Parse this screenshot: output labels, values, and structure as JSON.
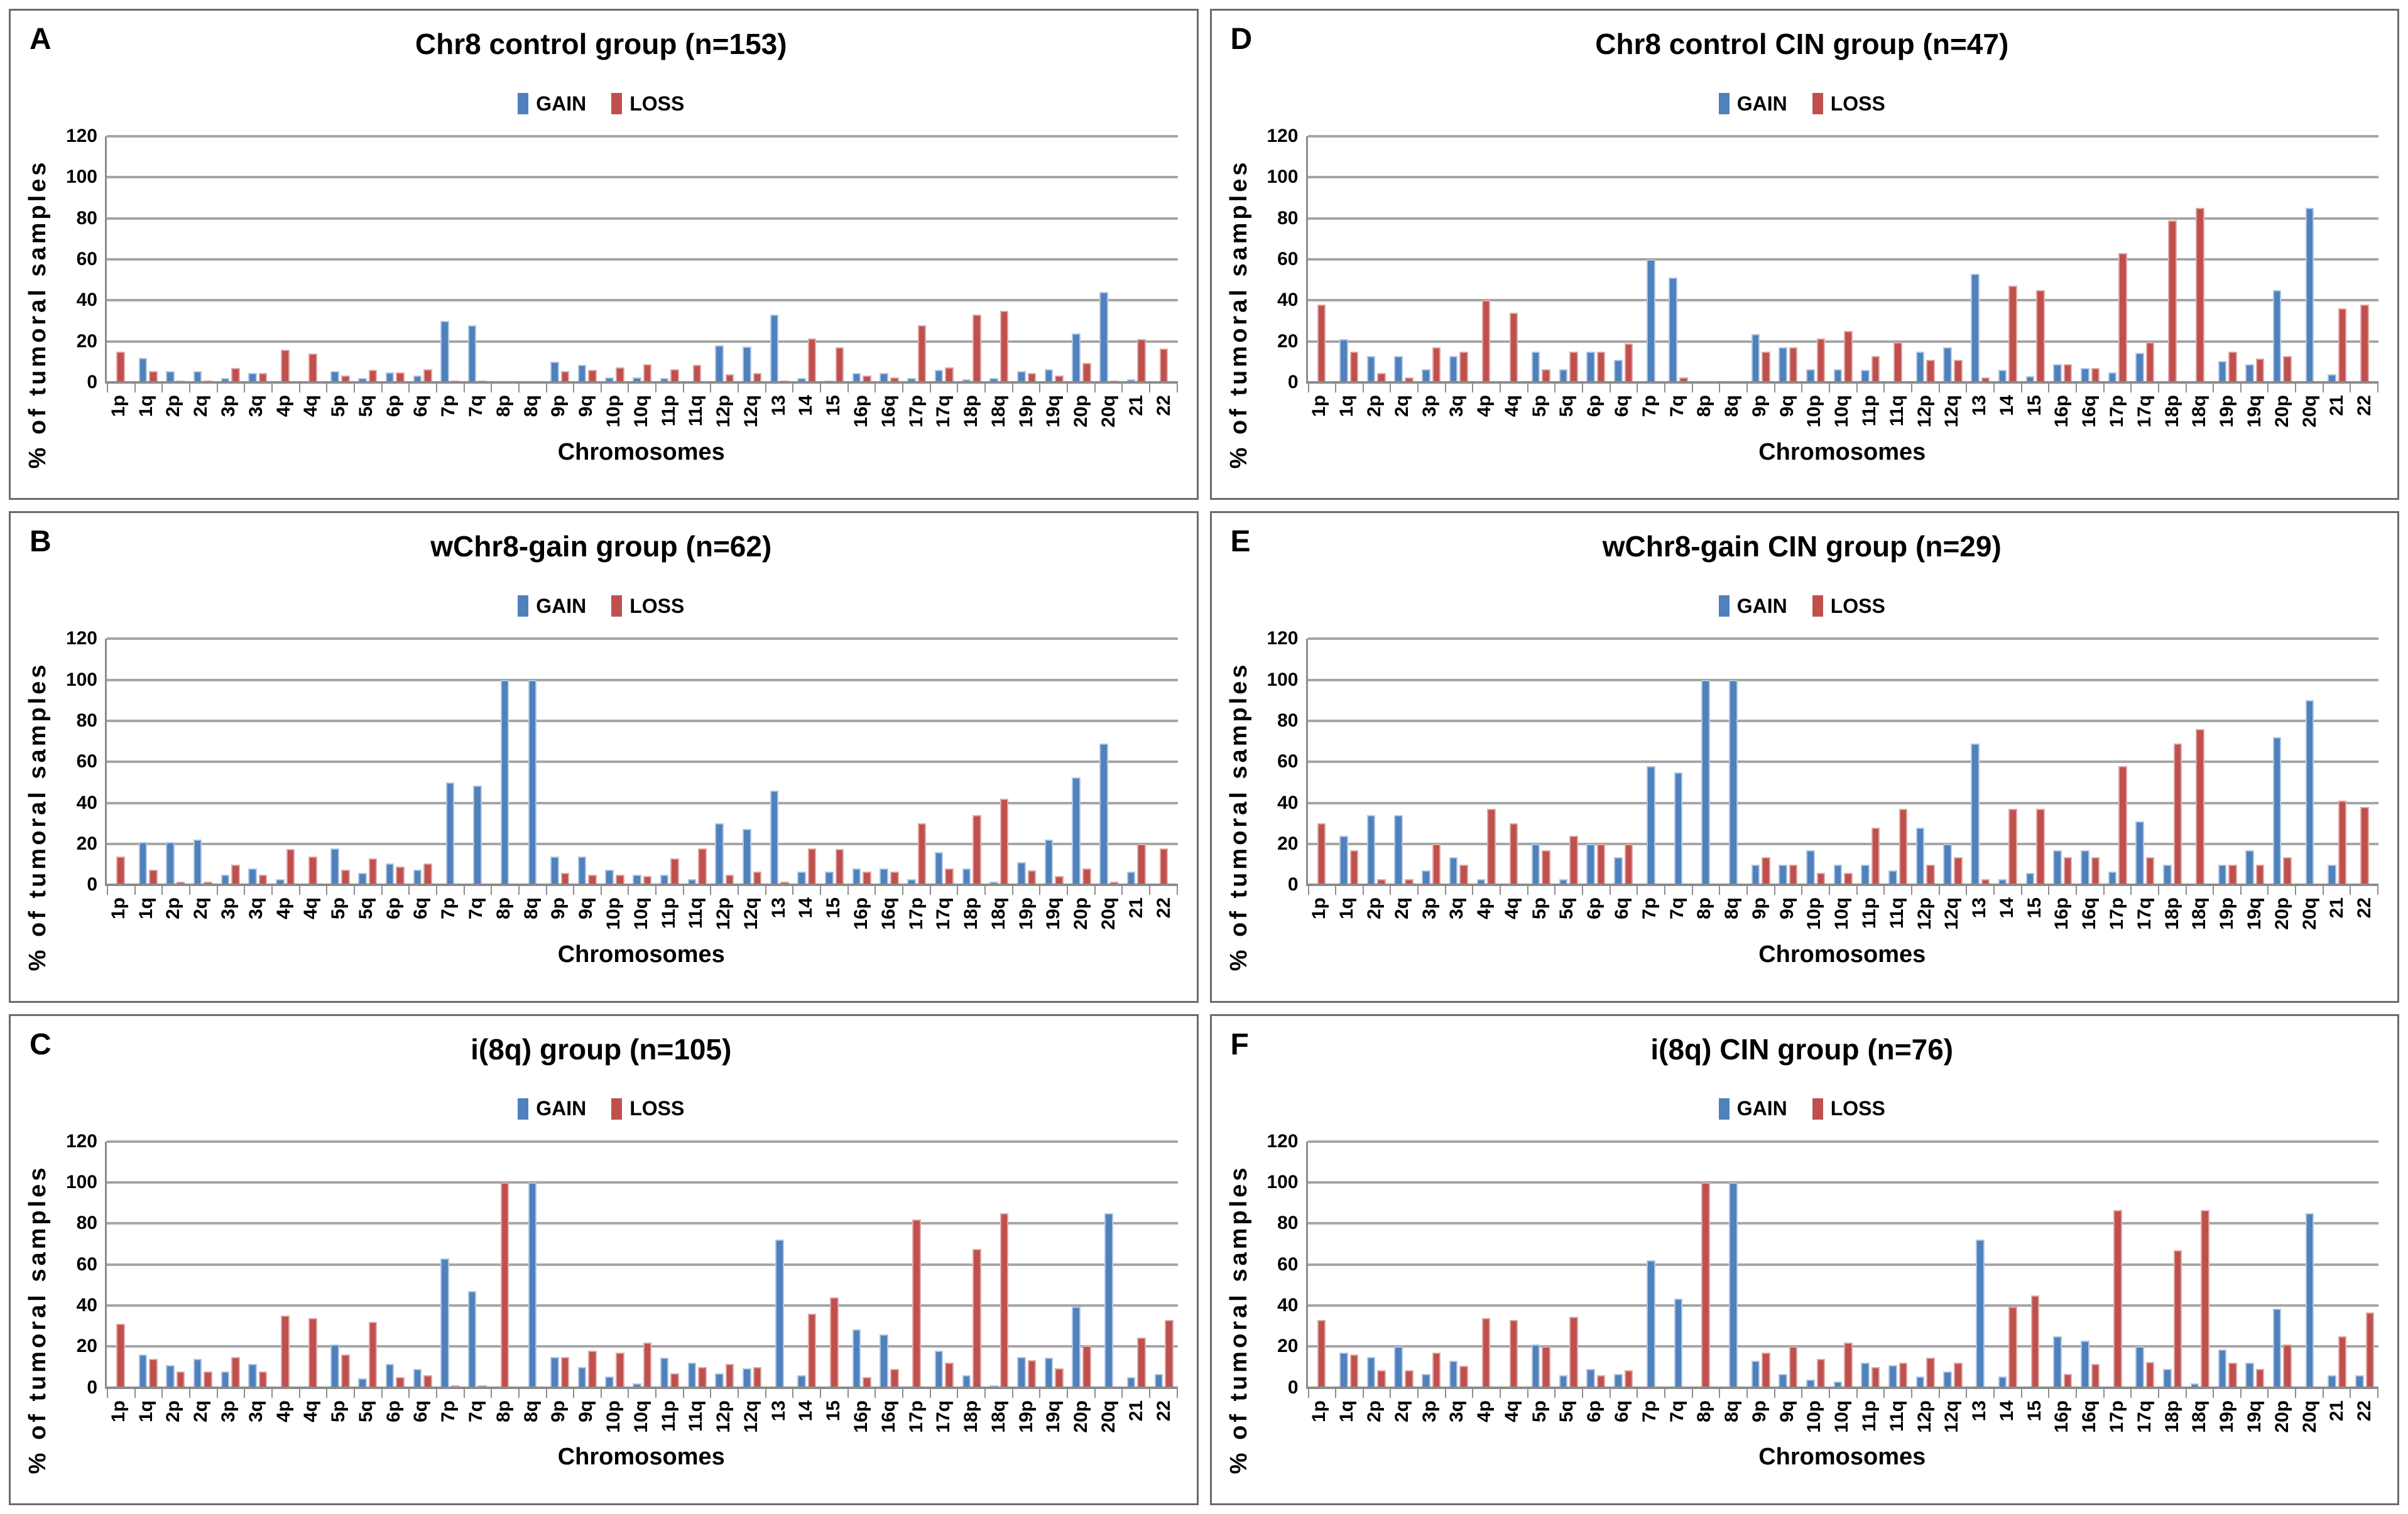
{
  "legend": {
    "gain_label": "GAIN",
    "loss_label": "LOSS"
  },
  "axis": {
    "ylabel": "% of tumoral samples",
    "xlabel": "Chromosomes",
    "yticks": [
      0,
      20,
      40,
      60,
      80,
      100,
      120
    ],
    "ylim": [
      0,
      120
    ]
  },
  "colors": {
    "gain": "#4F81BD",
    "gain_edge": "#AEC6E2",
    "loss": "#C0504D",
    "loss_edge": "#DFA7A5",
    "gridline": "#A6A6A6",
    "axis_line": "#8C8C8C",
    "panel_border": "#6B6B6B"
  },
  "chart_data": [
    {
      "letter": "A",
      "title": "Chr8 control group (n=153)",
      "type": "bar",
      "grid": true,
      "legend_position": "top",
      "ylim": [
        0,
        120
      ],
      "yticks": [
        0,
        20,
        40,
        60,
        80,
        100,
        120
      ],
      "categories": [
        "1p",
        "1q",
        "2p",
        "2q",
        "3p",
        "3q",
        "4p",
        "4q",
        "5p",
        "5q",
        "6p",
        "6q",
        "7p",
        "7q",
        "8p",
        "8q",
        "9p",
        "9q",
        "10p",
        "10q",
        "11p",
        "11q",
        "12p",
        "12q",
        "13",
        "14",
        "15",
        "16p",
        "16q",
        "17p",
        "17q",
        "18p",
        "18q",
        "19p",
        "19q",
        "20p",
        "20q",
        "21",
        "22"
      ],
      "series": [
        {
          "name": "GAIN",
          "color": "#4F81BD",
          "values": [
            0,
            12,
            5.5,
            5.5,
            2,
            4.5,
            0,
            0,
            5.5,
            2,
            5,
            3.5,
            30,
            28,
            0,
            0,
            10,
            8.5,
            2.5,
            2.5,
            2,
            0,
            18,
            17.5,
            33,
            2,
            1,
            4.5,
            4.5,
            2,
            6,
            1.5,
            2,
            5.5,
            6.5,
            24,
            44,
            1.5,
            0
          ]
        },
        {
          "name": "LOSS",
          "color": "#C0504D",
          "values": [
            15,
            5.5,
            1,
            1,
            7,
            4.5,
            16,
            14,
            3.5,
            6,
            5,
            6.5,
            1,
            1,
            0,
            0,
            5.5,
            6,
            7.5,
            9,
            6.5,
            8.5,
            4,
            4.5,
            1,
            21.5,
            17,
            3.5,
            2.5,
            28,
            7.5,
            33,
            35,
            4.5,
            3.5,
            9.5,
            1,
            21,
            16.5
          ]
        }
      ]
    },
    {
      "letter": "B",
      "title": "wChr8-gain group (n=62)",
      "type": "bar",
      "grid": true,
      "legend_position": "top",
      "ylim": [
        0,
        120
      ],
      "yticks": [
        0,
        20,
        40,
        60,
        80,
        100,
        120
      ],
      "categories": [
        "1p",
        "1q",
        "2p",
        "2q",
        "3p",
        "3q",
        "4p",
        "4q",
        "5p",
        "5q",
        "6p",
        "6q",
        "7p",
        "7q",
        "8p",
        "8q",
        "9p",
        "9q",
        "10p",
        "10q",
        "11p",
        "11q",
        "12p",
        "12q",
        "13",
        "14",
        "15",
        "16p",
        "16q",
        "17p",
        "17q",
        "18p",
        "18q",
        "19p",
        "19q",
        "20p",
        "20q",
        "21",
        "22"
      ],
      "series": [
        {
          "name": "GAIN",
          "color": "#4F81BD",
          "values": [
            0,
            21,
            21,
            22,
            5,
            8,
            3,
            0,
            18,
            6,
            10.5,
            7.5,
            50,
            48.5,
            100,
            100,
            14,
            14,
            7.5,
            5,
            5,
            3,
            30,
            27.5,
            46,
            6.5,
            6.5,
            8,
            8,
            3,
            16,
            8,
            1.5,
            11,
            22,
            52.5,
            69,
            6.5,
            0
          ]
        },
        {
          "name": "LOSS",
          "color": "#C0504D",
          "values": [
            14,
            7.5,
            1.5,
            1.5,
            10,
            5,
            17.5,
            14,
            7.5,
            13,
            9,
            10.5,
            0,
            0,
            0,
            0,
            6,
            5,
            5,
            4.5,
            13,
            18,
            5,
            6.5,
            1.5,
            18,
            17.5,
            6.5,
            6.5,
            30,
            8,
            34,
            42,
            7,
            4.5,
            8,
            1.5,
            20,
            18
          ]
        }
      ]
    },
    {
      "letter": "C",
      "title": "i(8q) group (n=105)",
      "type": "bar",
      "grid": true,
      "legend_position": "top",
      "ylim": [
        0,
        120
      ],
      "yticks": [
        0,
        20,
        40,
        60,
        80,
        100,
        120
      ],
      "categories": [
        "1p",
        "1q",
        "2p",
        "2q",
        "3p",
        "3q",
        "4p",
        "4q",
        "5p",
        "5q",
        "6p",
        "6q",
        "7p",
        "7q",
        "8p",
        "8q",
        "9p",
        "9q",
        "10p",
        "10q",
        "11p",
        "11q",
        "12p",
        "12q",
        "13",
        "14",
        "15",
        "16p",
        "16q",
        "17p",
        "17q",
        "18p",
        "18q",
        "19p",
        "19q",
        "20p",
        "20q",
        "21",
        "22"
      ],
      "series": [
        {
          "name": "GAIN",
          "color": "#4F81BD",
          "values": [
            0,
            16,
            11,
            14,
            8,
            11.5,
            0,
            0,
            21,
            4.5,
            11.5,
            9,
            63,
            47,
            0,
            100,
            15,
            10,
            5.5,
            2,
            14.5,
            12,
            7,
            9.5,
            72,
            6,
            0,
            28.5,
            26,
            0,
            18,
            6,
            1,
            15,
            14.5,
            39.5,
            85,
            5,
            6.5
          ]
        },
        {
          "name": "LOSS",
          "color": "#C0504D",
          "values": [
            31,
            14,
            8,
            8,
            15,
            8,
            35,
            34,
            16,
            32,
            5,
            6,
            1,
            1,
            100,
            0,
            15,
            18,
            17,
            22,
            7,
            10,
            11.5,
            10,
            0,
            36,
            44,
            5,
            9,
            82,
            12,
            67.5,
            85,
            13.5,
            9.5,
            20.5,
            0,
            24.5,
            33
          ]
        }
      ]
    },
    {
      "letter": "D",
      "title": "Chr8 control CIN group (n=47)",
      "type": "bar",
      "grid": true,
      "legend_position": "top",
      "ylim": [
        0,
        120
      ],
      "yticks": [
        0,
        20,
        40,
        60,
        80,
        100,
        120
      ],
      "categories": [
        "1p",
        "1q",
        "2p",
        "2q",
        "3p",
        "3q",
        "4p",
        "4q",
        "5p",
        "5q",
        "6p",
        "6q",
        "7p",
        "7q",
        "8p",
        "8q",
        "9p",
        "9q",
        "10p",
        "10q",
        "11p",
        "11q",
        "12p",
        "12q",
        "13",
        "14",
        "15",
        "16p",
        "16q",
        "17p",
        "17q",
        "18p",
        "18q",
        "19p",
        "19q",
        "20p",
        "20q",
        "21",
        "22"
      ],
      "series": [
        {
          "name": "GAIN",
          "color": "#4F81BD",
          "values": [
            0,
            21,
            13,
            13,
            6.5,
            13,
            0,
            0,
            15,
            6.5,
            15,
            11,
            60,
            51,
            0,
            0,
            23.5,
            17,
            6.5,
            6.5,
            6,
            0,
            15,
            17,
            53,
            6,
            3,
            9,
            7,
            5,
            14.5,
            0,
            0,
            10.5,
            9,
            45,
            85,
            4,
            0
          ]
        },
        {
          "name": "LOSS",
          "color": "#C0504D",
          "values": [
            38,
            15,
            4.5,
            2.5,
            17,
            15,
            40,
            34,
            6.5,
            15,
            15,
            19,
            0,
            2.5,
            0,
            0,
            15,
            17,
            21.5,
            25,
            13,
            19.5,
            11,
            11,
            2.5,
            47,
            45,
            9,
            7,
            63,
            19.5,
            79,
            85,
            15,
            11.5,
            13,
            0,
            36,
            38
          ]
        }
      ]
    },
    {
      "letter": "E",
      "title": "wChr8-gain CIN group (n=29)",
      "type": "bar",
      "grid": true,
      "legend_position": "top",
      "ylim": [
        0,
        120
      ],
      "yticks": [
        0,
        20,
        40,
        60,
        80,
        100,
        120
      ],
      "categories": [
        "1p",
        "1q",
        "2p",
        "2q",
        "3p",
        "3q",
        "4p",
        "4q",
        "5p",
        "5q",
        "6p",
        "6q",
        "7p",
        "7q",
        "8p",
        "8q",
        "9p",
        "9q",
        "10p",
        "10q",
        "11p",
        "11q",
        "12p",
        "12q",
        "13",
        "14",
        "15",
        "16p",
        "16q",
        "17p",
        "17q",
        "18p",
        "18q",
        "19p",
        "19q",
        "20p",
        "20q",
        "21",
        "22"
      ],
      "series": [
        {
          "name": "GAIN",
          "color": "#4F81BD",
          "values": [
            0,
            24,
            34,
            34,
            7,
            13.5,
            3,
            0,
            20,
            3,
            20,
            13.5,
            58,
            55,
            100,
            100,
            10,
            10,
            17,
            10,
            10,
            7,
            28,
            20,
            69,
            3,
            6,
            17,
            17,
            6.5,
            31,
            10,
            0,
            10,
            17,
            72,
            90,
            10,
            0
          ]
        },
        {
          "name": "LOSS",
          "color": "#C0504D",
          "values": [
            30,
            17,
            3,
            3,
            20,
            10,
            37,
            30,
            17,
            24,
            20,
            20,
            0,
            0,
            0,
            0,
            13.5,
            10,
            6,
            6,
            28,
            37,
            10,
            13.5,
            3,
            37,
            37,
            13.5,
            13.5,
            58,
            13.5,
            69,
            76,
            10,
            10,
            13.5,
            0,
            41,
            38
          ]
        }
      ]
    },
    {
      "letter": "F",
      "title": "i(8q) CIN group (n=76)",
      "type": "bar",
      "grid": true,
      "legend_position": "top",
      "ylim": [
        0,
        120
      ],
      "yticks": [
        0,
        20,
        40,
        60,
        80,
        100,
        120
      ],
      "categories": [
        "1p",
        "1q",
        "2p",
        "2q",
        "3p",
        "3q",
        "4p",
        "4q",
        "5p",
        "5q",
        "6p",
        "6q",
        "7p",
        "7q",
        "8p",
        "8q",
        "9p",
        "9q",
        "10p",
        "10q",
        "11p",
        "11q",
        "12p",
        "12q",
        "13",
        "14",
        "15",
        "16p",
        "16q",
        "17p",
        "17q",
        "18p",
        "18q",
        "19p",
        "19q",
        "20p",
        "20q",
        "21",
        "22"
      ],
      "series": [
        {
          "name": "GAIN",
          "color": "#4F81BD",
          "values": [
            0,
            17,
            15,
            20,
            6.5,
            13,
            0,
            0,
            21,
            6,
            9,
            6.5,
            62,
            43.5,
            0,
            100,
            13,
            6.5,
            4,
            3,
            12,
            11,
            5.5,
            8,
            72,
            5.5,
            0,
            25,
            23,
            0,
            20,
            9,
            2,
            18.5,
            12,
            38.5,
            85,
            6,
            6
          ]
        },
        {
          "name": "LOSS",
          "color": "#C0504D",
          "values": [
            33,
            16,
            8.5,
            8.5,
            17,
            10.5,
            34,
            33,
            20,
            34.5,
            6,
            8.5,
            0,
            0,
            100,
            0,
            17,
            20,
            14,
            22,
            10,
            12,
            14.5,
            12,
            0,
            39.5,
            45,
            6.5,
            11.5,
            86.5,
            12.5,
            67,
            86.5,
            12,
            9,
            21,
            0,
            25,
            36.5
          ]
        }
      ]
    }
  ]
}
